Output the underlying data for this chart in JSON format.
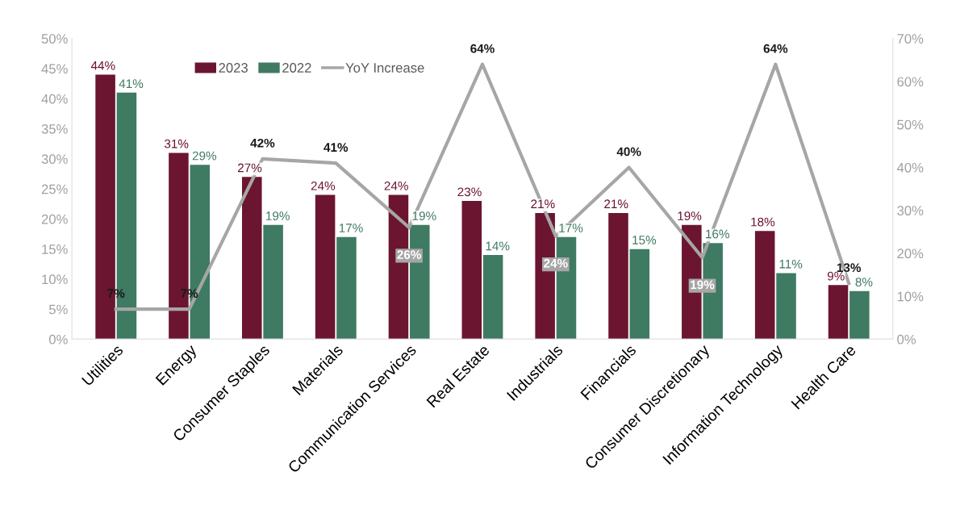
{
  "chart_data": {
    "type": "bar",
    "categories": [
      "Utilities",
      "Energy",
      "Consumer Staples",
      "Materials",
      "Communication Services",
      "Real Estate",
      "Industrials",
      "Financials",
      "Consumer Discretionary",
      "Information Technology",
      "Health Care"
    ],
    "series": [
      {
        "name": "2023",
        "color": "#6b1530",
        "values": [
          44,
          31,
          27,
          24,
          24,
          23,
          21,
          21,
          19,
          18,
          9
        ],
        "value_labels": [
          "44%",
          "31%",
          "27%",
          "24%",
          "24%",
          "23%",
          "21%",
          "21%",
          "19%",
          "18%",
          "9%"
        ]
      },
      {
        "name": "2022",
        "color": "#3f7a62",
        "values": [
          41,
          29,
          19,
          17,
          19,
          14,
          17,
          15,
          16,
          11,
          8
        ],
        "value_labels": [
          "41%",
          "29%",
          "19%",
          "17%",
          "19%",
          "14%",
          "17%",
          "15%",
          "16%",
          "11%",
          "8%"
        ]
      },
      {
        "name": "YoY Increase",
        "type": "line",
        "axis": "y2",
        "color": "#a6a6a6",
        "values": [
          7,
          7,
          42,
          41,
          26,
          64,
          24,
          40,
          19,
          64,
          13
        ],
        "value_labels": [
          "7%",
          "7%",
          "42%",
          "41%",
          "26%",
          "64%",
          "24%",
          "40%",
          "19%",
          "64%",
          "13%"
        ]
      }
    ],
    "ylim": [
      0,
      50
    ],
    "yticks": [
      {
        "value": 0,
        "label": "0%"
      },
      {
        "value": 5,
        "label": "5%"
      },
      {
        "value": 10,
        "label": "10%"
      },
      {
        "value": 15,
        "label": "15%"
      },
      {
        "value": 20,
        "label": "20%"
      },
      {
        "value": 25,
        "label": "25%"
      },
      {
        "value": 30,
        "label": "30%"
      },
      {
        "value": 35,
        "label": "35%"
      },
      {
        "value": 40,
        "label": "40%"
      },
      {
        "value": 45,
        "label": "45%"
      },
      {
        "value": 50,
        "label": "50%"
      }
    ],
    "y2lim": [
      0,
      70
    ],
    "y2ticks": [
      {
        "value": 0,
        "label": "0%"
      },
      {
        "value": 10,
        "label": "10%"
      },
      {
        "value": 20,
        "label": "20%"
      },
      {
        "value": 30,
        "label": "30%"
      },
      {
        "value": 40,
        "label": "40%"
      },
      {
        "value": 50,
        "label": "50%"
      },
      {
        "value": 60,
        "label": "60%"
      },
      {
        "value": 70,
        "label": "70%"
      }
    ],
    "legend": "top",
    "grid": false,
    "marker": "none",
    "line_style": "solid"
  }
}
